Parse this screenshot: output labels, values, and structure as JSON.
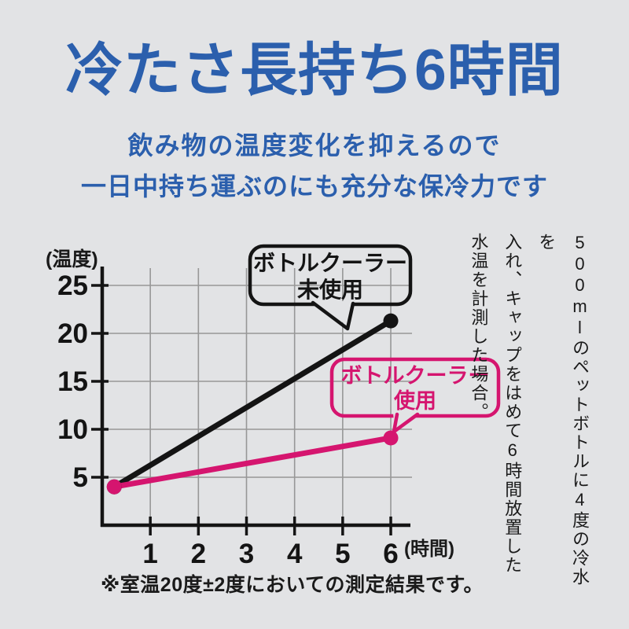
{
  "page": {
    "title": "冷たさ長持ち6時間",
    "subtitle_line1": "飲み物の温度変化を抑えるので",
    "subtitle_line2": "一日中持ち運ぶのにも充分な保冷力です",
    "footnote": "※室温20度±2度においての測定結果です。"
  },
  "side_note": {
    "line1": "500mlのペットボトルに4度の冷水を",
    "line2": "入れ、キャップをはめて6時間放置した",
    "line3": "水温を計測した場合。"
  },
  "colors": {
    "background": "#e2e3e5",
    "title_blue": "#2b5fad",
    "accent_pink": "#d5156f",
    "line_black": "#141414",
    "grid_gray": "#979797"
  },
  "chart_data": {
    "type": "line",
    "title": "",
    "xlabel": "(時間)",
    "ylabel": "(温度)",
    "x_ticks": [
      1,
      2,
      3,
      4,
      5,
      6
    ],
    "y_ticks": [
      5,
      10,
      15,
      20,
      25
    ],
    "xlim": [
      0,
      6.45
    ],
    "ylim": [
      0,
      27
    ],
    "grid": true,
    "legend_position": "callouts-on-plot",
    "series": [
      {
        "name": "ボトルクーラー未使用",
        "color": "#141414",
        "x": [
          0.25,
          6
        ],
        "y": [
          4,
          21.3
        ]
      },
      {
        "name": "ボトルクーラー使用",
        "color": "#d5156f",
        "x": [
          0.25,
          6
        ],
        "y": [
          4,
          9.1
        ]
      }
    ],
    "annotations": [
      {
        "target_series": "ボトルクーラー未使用",
        "line1": "ボトルクーラー",
        "line2": "未使用"
      },
      {
        "target_series": "ボトルクーラー使用",
        "line1": "ボトルクーラー",
        "line2": "使用"
      }
    ]
  }
}
